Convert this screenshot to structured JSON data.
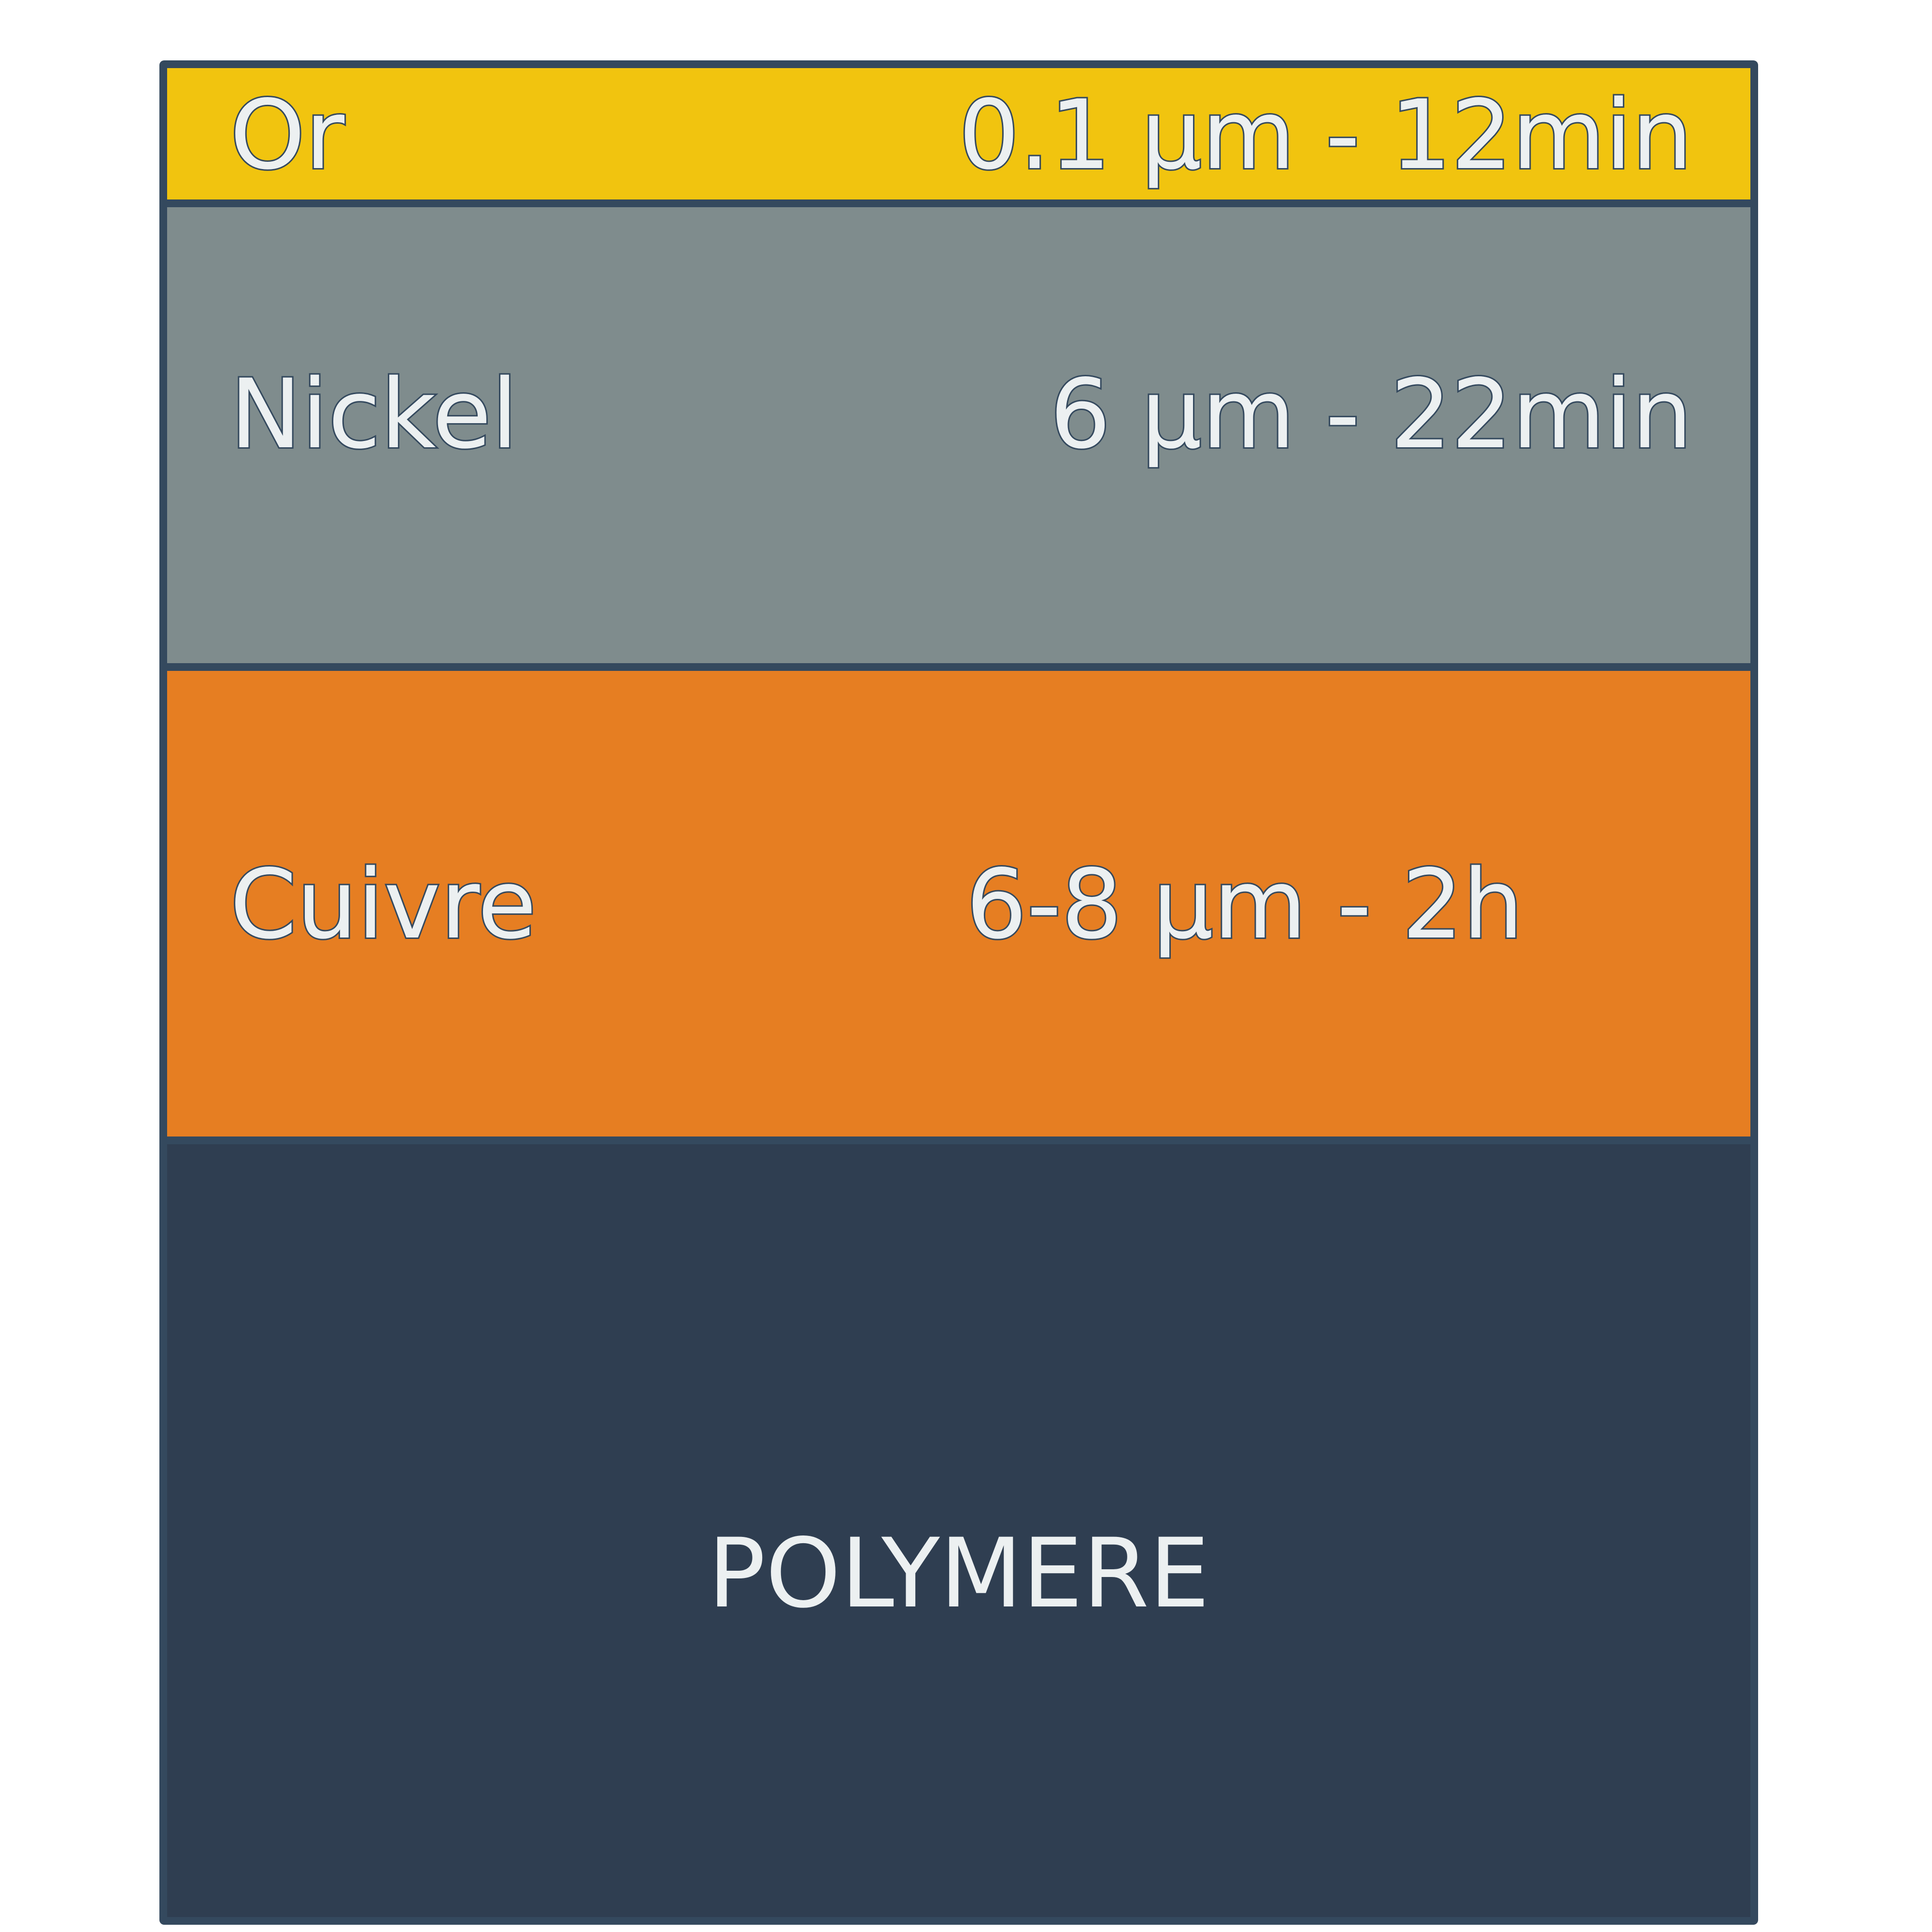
{
  "layers": [
    {
      "name": "Or",
      "value": "0.1 µm  -  12min",
      "color": "#f1c40f"
    },
    {
      "name": "Nickel",
      "value": "6 µm  -  22min",
      "color": "#7f8c8d"
    },
    {
      "name": "Cuivre",
      "value": "6-8 µm  -  2h",
      "color": "#e67e22"
    }
  ],
  "substrate": {
    "label": "POLYMERE",
    "color": "#2f3e51"
  },
  "colors": {
    "border": "#34495e",
    "text": "#ecf0f1"
  }
}
